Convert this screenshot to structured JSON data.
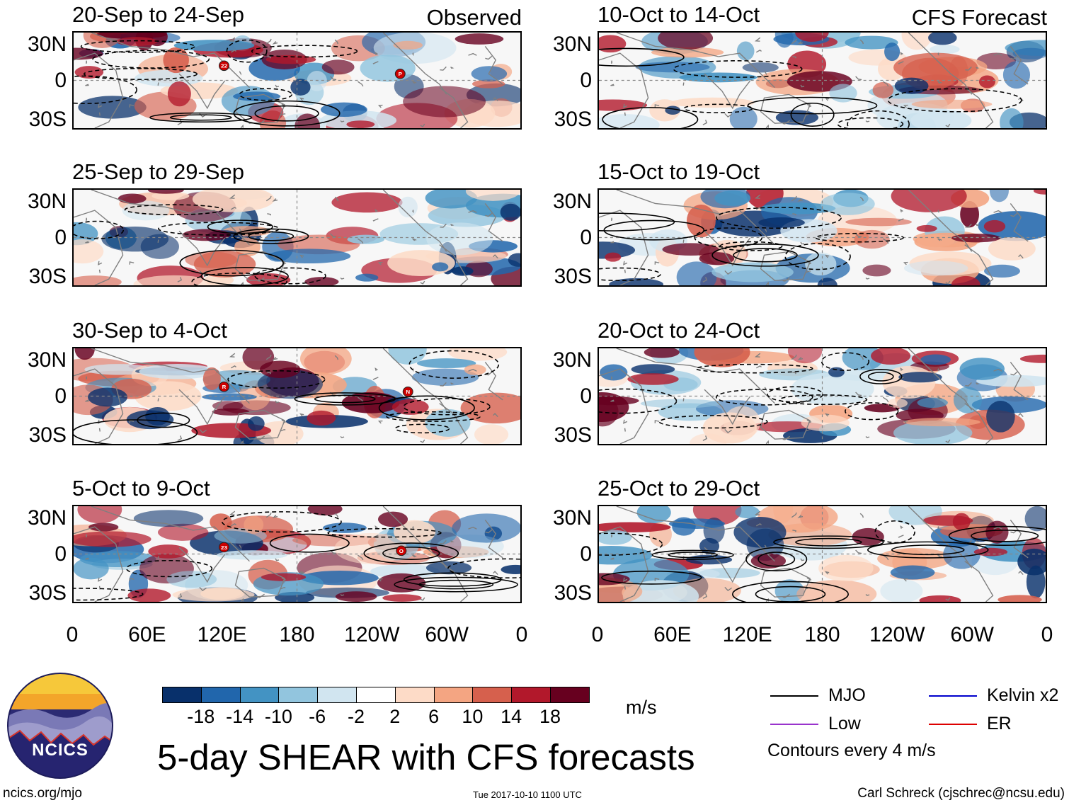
{
  "chart_data": {
    "type": "heatmap",
    "title": "5-day SHEAR with CFS forecasts",
    "units": "m/s",
    "y_ticks": [
      "30N",
      "0",
      "30S"
    ],
    "x_ticks": [
      "0",
      "60E",
      "120E",
      "180",
      "120W",
      "60W",
      "0"
    ],
    "column_labels": {
      "left": "Observed",
      "right": "CFS Forecast"
    },
    "colorbar": {
      "levels": [
        -18,
        -14,
        -10,
        -6,
        -2,
        2,
        6,
        10,
        14,
        18
      ],
      "tick_labels": [
        "-18",
        "-14",
        "-10",
        "-6",
        "-2",
        "2",
        "6",
        "10",
        "14",
        "18"
      ],
      "colors": [
        "#08306b",
        "#2166ac",
        "#4393c3",
        "#92c5de",
        "#d1e5f0",
        "#ffffff",
        "#fddbc7",
        "#f4a582",
        "#d6604d",
        "#b2182b",
        "#67001f"
      ]
    },
    "panels": [
      {
        "title": "20-Sep to 24-Sep",
        "kind": "observed",
        "storms": [
          "22",
          "P"
        ]
      },
      {
        "title": "25-Sep to 29-Sep",
        "kind": "observed",
        "storms": []
      },
      {
        "title": "30-Sep to 4-Oct",
        "kind": "observed",
        "storms": [
          "R",
          "N"
        ]
      },
      {
        "title": "5-Oct to 9-Oct",
        "kind": "observed",
        "storms": [
          "23",
          "O"
        ]
      },
      {
        "title": "10-Oct to 14-Oct",
        "kind": "forecast",
        "storms": []
      },
      {
        "title": "15-Oct to 19-Oct",
        "kind": "forecast",
        "storms": []
      },
      {
        "title": "20-Oct to 24-Oct",
        "kind": "forecast",
        "storms": []
      },
      {
        "title": "25-Oct to 29-Oct",
        "kind": "forecast",
        "storms": []
      }
    ],
    "legend": [
      {
        "label": "MJO",
        "color": "#000000"
      },
      {
        "label": "Kelvin x2",
        "color": "#0000cc"
      },
      {
        "label": "Low",
        "color": "#9933cc"
      },
      {
        "label": "ER",
        "color": "#dd0000"
      }
    ],
    "contour_note": "Contours every 4 m/s"
  },
  "footer": {
    "logo_text": "NCICS",
    "website": "ncics.org/mjo",
    "timestamp": "Tue 2017-10-10 1100 UTC",
    "credit": "Carl Schreck (cjschrec@ncsu.edu)"
  }
}
